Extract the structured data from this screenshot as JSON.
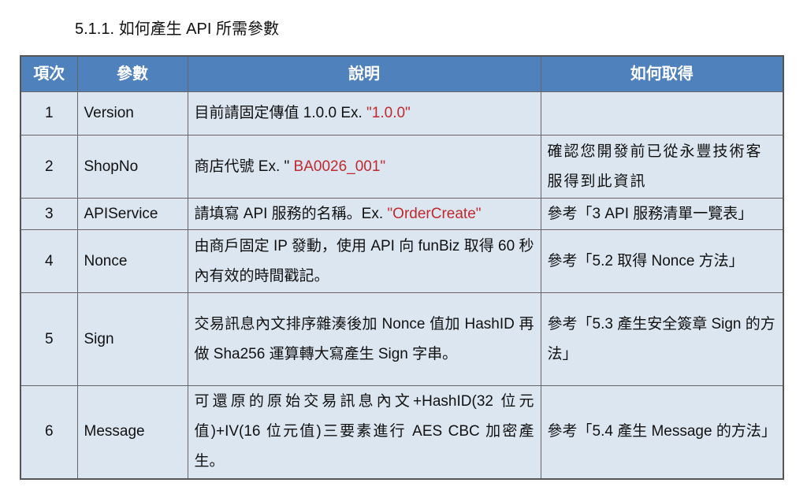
{
  "title": "5.1.1.  如何產生 API 所需參數",
  "headers": [
    "項次",
    "參數",
    "說明",
    "如何取得"
  ],
  "rows": [
    {
      "no": "1",
      "param": "Version",
      "desc": "目前請固定傳值 1.0.0 Ex. ",
      "example": "\"1.0.0\"",
      "how": ""
    },
    {
      "no": "2",
      "param": "ShopNo",
      "desc": "商店代號 Ex. \"",
      "example": " BA0026_001\"",
      "how": "確認您開發前已從永豐技術客服得到此資訊"
    },
    {
      "no": "3",
      "param": "APIService",
      "desc": "請填寫 API 服務的名稱。Ex. ",
      "example": "\"OrderCreate\"",
      "how": "參考「3 API 服務清單一覽表」"
    },
    {
      "no": "4",
      "param": "Nonce",
      "desc": "由商戶固定 IP 發動，使用 API 向 funBiz 取得 60 秒內有效的時間戳記。",
      "example": "",
      "how": "參考「5.2 取得 Nonce 方法」"
    },
    {
      "no": "5",
      "param": "Sign",
      "desc": "交易訊息內文排序雜湊後加 Nonce 值加 HashID 再做 Sha256 運算轉大寫產生 Sign 字串。",
      "example": "",
      "how": "參考「5.3 產生安全簽章 Sign 的方法」"
    },
    {
      "no": "6",
      "param": "Message",
      "desc": "可還原的原始交易訊息內文+HashID(32 位元值)+IV(16 位元值)三要素進行 AES CBC 加密產生。",
      "example": "",
      "how": "參考「5.4 產生 Message 的方法」"
    }
  ],
  "colors": {
    "header_bg": "#4f81bd",
    "cell_bg": "#dce6f1",
    "example_text": "#c0282d"
  }
}
